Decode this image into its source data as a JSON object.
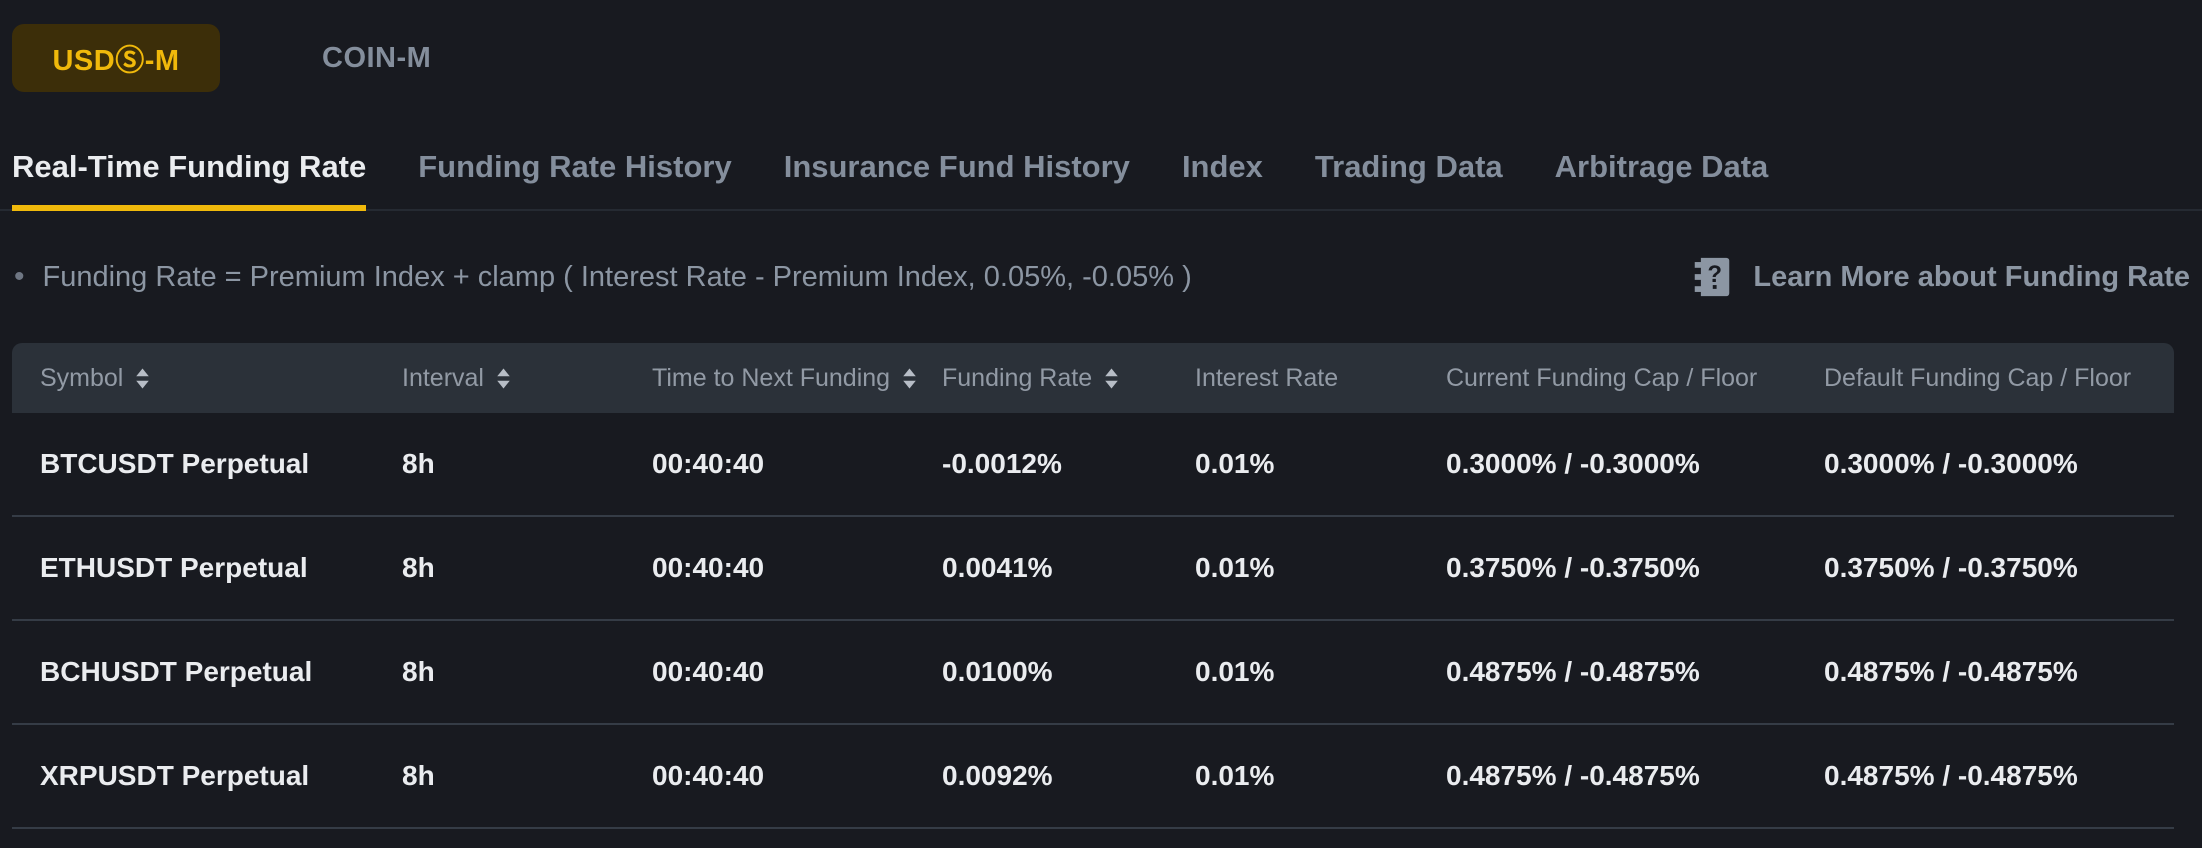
{
  "market_toggle": {
    "options": [
      {
        "label": "USDⓈ-M",
        "active": true
      },
      {
        "label": "COIN-M",
        "active": false
      }
    ]
  },
  "tabs": [
    {
      "label": "Real-Time Funding Rate",
      "active": true
    },
    {
      "label": "Funding Rate History",
      "active": false
    },
    {
      "label": "Insurance Fund History",
      "active": false
    },
    {
      "label": "Index",
      "active": false
    },
    {
      "label": "Trading Data",
      "active": false
    },
    {
      "label": "Arbitrage Data",
      "active": false
    }
  ],
  "info_bar": {
    "formula": "Funding Rate = Premium Index + clamp ( Interest Rate - Premium Index, 0.05%, -0.05% )",
    "learn_more": "Learn More about Funding Rate",
    "learn_more_icon": "guide-question-icon"
  },
  "table": {
    "columns": [
      {
        "label": "Symbol",
        "sortable": true
      },
      {
        "label": "Interval",
        "sortable": true
      },
      {
        "label": "Time to Next Funding",
        "sortable": true
      },
      {
        "label": "Funding Rate",
        "sortable": true
      },
      {
        "label": "Interest Rate",
        "sortable": false
      },
      {
        "label": "Current Funding Cap / Floor",
        "sortable": false
      },
      {
        "label": "Default Funding Cap / Floor",
        "sortable": false
      }
    ],
    "rows": [
      [
        "BTCUSDT Perpetual",
        "8h",
        "00:40:40",
        "-0.0012%",
        "0.01%",
        "0.3000% / -0.3000%",
        "0.3000% / -0.3000%"
      ],
      [
        "ETHUSDT Perpetual",
        "8h",
        "00:40:40",
        "0.0041%",
        "0.01%",
        "0.3750% / -0.3750%",
        "0.3750% / -0.3750%"
      ],
      [
        "BCHUSDT Perpetual",
        "8h",
        "00:40:40",
        "0.0100%",
        "0.01%",
        "0.4875% / -0.4875%",
        "0.4875% / -0.4875%"
      ],
      [
        "XRPUSDT Perpetual",
        "8h",
        "00:40:40",
        "0.0092%",
        "0.01%",
        "0.4875% / -0.4875%",
        "0.4875% / -0.4875%"
      ]
    ]
  },
  "colors": {
    "background": "#181A20",
    "table_header_background": "#2B3139",
    "accent_yellow": "#F0B90B",
    "active_button_background": "#3C2E09",
    "text_primary": "#EAECEF",
    "text_secondary": "#848E9C",
    "divider": "#353C46"
  }
}
